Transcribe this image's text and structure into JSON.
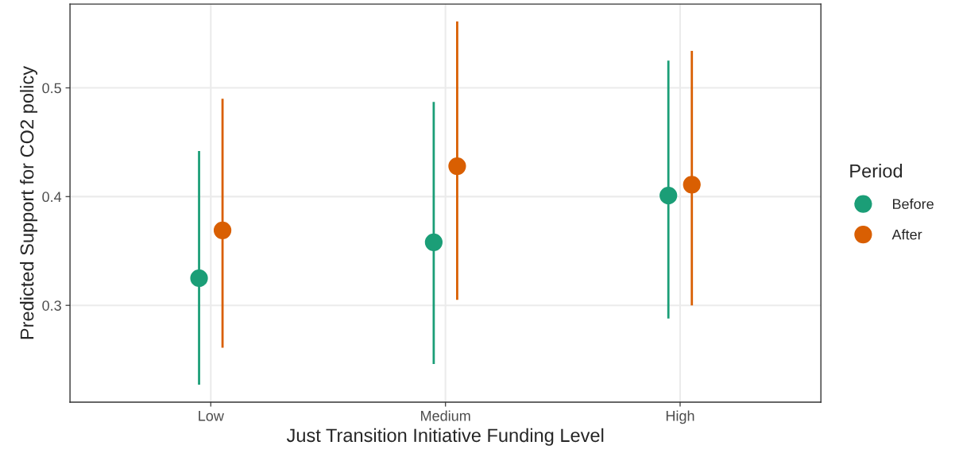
{
  "chart_data": {
    "type": "scatter",
    "xlabel": "Just Transition Initiative Funding Level",
    "ylabel": "Predicted Support for CO2 policy",
    "legend_title": "Period",
    "categories": [
      "Low",
      "Medium",
      "High"
    ],
    "series": [
      {
        "name": "Before",
        "color": "#1b9e77",
        "values": [
          0.325,
          0.358,
          0.401
        ],
        "errors": [
          [
            0.227,
            0.442
          ],
          [
            0.246,
            0.487
          ],
          [
            0.288,
            0.525
          ]
        ]
      },
      {
        "name": "After",
        "color": "#d95f02",
        "values": [
          0.369,
          0.428,
          0.411
        ],
        "errors": [
          [
            0.261,
            0.49
          ],
          [
            0.305,
            0.561
          ],
          [
            0.3,
            0.534
          ]
        ]
      }
    ],
    "ylim": [
      0.211,
      0.577
    ],
    "yticks": [
      0.3,
      0.4,
      0.5
    ],
    "grid": true,
    "legend": "right",
    "marker": "circle"
  }
}
